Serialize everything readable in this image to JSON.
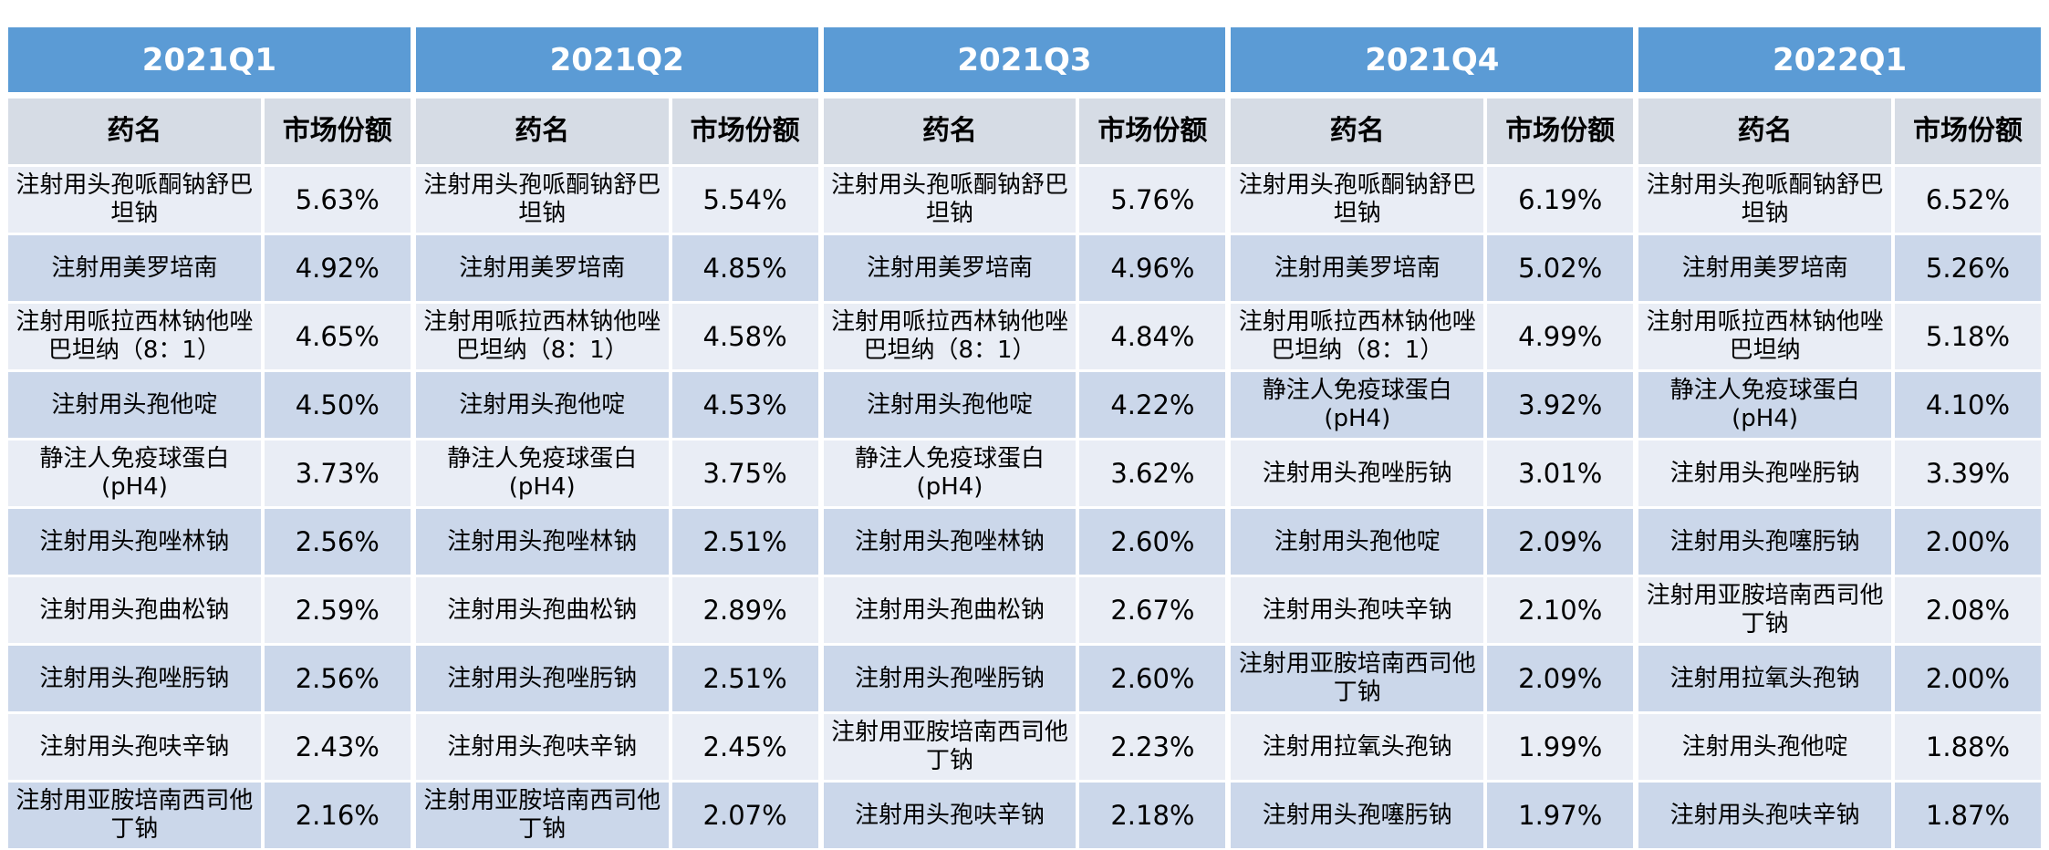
{
  "colors": {
    "quarter_header_bg": "#5B9BD5",
    "quarter_header_text": "#FFFFFF",
    "column_header_bg": "#D6DCE5",
    "row_light_bg": "#E9EDF5",
    "row_dark_bg": "#CBD7EA",
    "body_text": "#000000",
    "grid_line": "#FFFFFF"
  },
  "chart_data": {
    "type": "table",
    "col_headers": {
      "name": "药名",
      "share": "市场份额"
    },
    "quarters": [
      {
        "label": "2021Q1",
        "rows": [
          {
            "name": "注射用头孢哌酮钠舒巴坦钠",
            "share": "5.63%"
          },
          {
            "name": "注射用美罗培南",
            "share": "4.92%"
          },
          {
            "name": "注射用哌拉西林钠他唑巴坦纳（8：1）",
            "share": "4.65%"
          },
          {
            "name": "注射用头孢他啶",
            "share": "4.50%"
          },
          {
            "name": "静注人免疫球蛋白(pH4)",
            "share": "3.73%"
          },
          {
            "name": "注射用头孢唑林钠",
            "share": "2.56%"
          },
          {
            "name": "注射用头孢曲松钠",
            "share": "2.59%"
          },
          {
            "name": "注射用头孢唑肟钠",
            "share": "2.56%"
          },
          {
            "name": "注射用头孢呋辛钠",
            "share": "2.43%"
          },
          {
            "name": "注射用亚胺培南西司他丁钠",
            "share": "2.16%"
          }
        ]
      },
      {
        "label": "2021Q2",
        "rows": [
          {
            "name": "注射用头孢哌酮钠舒巴坦钠",
            "share": "5.54%"
          },
          {
            "name": "注射用美罗培南",
            "share": "4.85%"
          },
          {
            "name": "注射用哌拉西林钠他唑巴坦纳（8：1）",
            "share": "4.58%"
          },
          {
            "name": "注射用头孢他啶",
            "share": "4.53%"
          },
          {
            "name": "静注人免疫球蛋白(pH4)",
            "share": "3.75%"
          },
          {
            "name": "注射用头孢唑林钠",
            "share": "2.51%"
          },
          {
            "name": "注射用头孢曲松钠",
            "share": "2.89%"
          },
          {
            "name": "注射用头孢唑肟钠",
            "share": "2.51%"
          },
          {
            "name": "注射用头孢呋辛钠",
            "share": "2.45%"
          },
          {
            "name": "注射用亚胺培南西司他丁钠",
            "share": "2.07%"
          }
        ]
      },
      {
        "label": "2021Q3",
        "rows": [
          {
            "name": "注射用头孢哌酮钠舒巴坦钠",
            "share": "5.76%"
          },
          {
            "name": "注射用美罗培南",
            "share": "4.96%"
          },
          {
            "name": "注射用哌拉西林钠他唑巴坦纳（8：1）",
            "share": "4.84%"
          },
          {
            "name": "注射用头孢他啶",
            "share": "4.22%"
          },
          {
            "name": "静注人免疫球蛋白(pH4)",
            "share": "3.62%"
          },
          {
            "name": "注射用头孢唑林钠",
            "share": "2.60%"
          },
          {
            "name": "注射用头孢曲松钠",
            "share": "2.67%"
          },
          {
            "name": "注射用头孢唑肟钠",
            "share": "2.60%"
          },
          {
            "name": "注射用亚胺培南西司他丁钠",
            "share": "2.23%"
          },
          {
            "name": "注射用头孢呋辛钠",
            "share": "2.18%"
          }
        ]
      },
      {
        "label": "2021Q4",
        "rows": [
          {
            "name": "注射用头孢哌酮钠舒巴坦钠",
            "share": "6.19%"
          },
          {
            "name": "注射用美罗培南",
            "share": "5.02%"
          },
          {
            "name": "注射用哌拉西林钠他唑巴坦纳（8：1）",
            "share": "4.99%"
          },
          {
            "name": "静注人免疫球蛋白(pH4)",
            "share": "3.92%"
          },
          {
            "name": "注射用头孢唑肟钠",
            "share": "3.01%"
          },
          {
            "name": "注射用头孢他啶",
            "share": "2.09%"
          },
          {
            "name": "注射用头孢呋辛钠",
            "share": "2.10%"
          },
          {
            "name": "注射用亚胺培南西司他丁钠",
            "share": "2.09%"
          },
          {
            "name": "注射用拉氧头孢钠",
            "share": "1.99%"
          },
          {
            "name": "注射用头孢噻肟钠",
            "share": "1.97%"
          }
        ]
      },
      {
        "label": "2022Q1",
        "rows": [
          {
            "name": "注射用头孢哌酮钠舒巴坦钠",
            "share": "6.52%"
          },
          {
            "name": "注射用美罗培南",
            "share": "5.26%"
          },
          {
            "name": "注射用哌拉西林钠他唑巴坦纳",
            "share": "5.18%"
          },
          {
            "name": "静注人免疫球蛋白(pH4)",
            "share": "4.10%"
          },
          {
            "name": "注射用头孢唑肟钠",
            "share": "3.39%"
          },
          {
            "name": "注射用头孢噻肟钠",
            "share": "2.00%"
          },
          {
            "name": "注射用亚胺培南西司他丁钠",
            "share": "2.08%"
          },
          {
            "name": "注射用拉氧头孢钠",
            "share": "2.00%"
          },
          {
            "name": "注射用头孢他啶",
            "share": "1.88%"
          },
          {
            "name": "注射用头孢呋辛钠",
            "share": "1.87%"
          }
        ]
      }
    ]
  }
}
